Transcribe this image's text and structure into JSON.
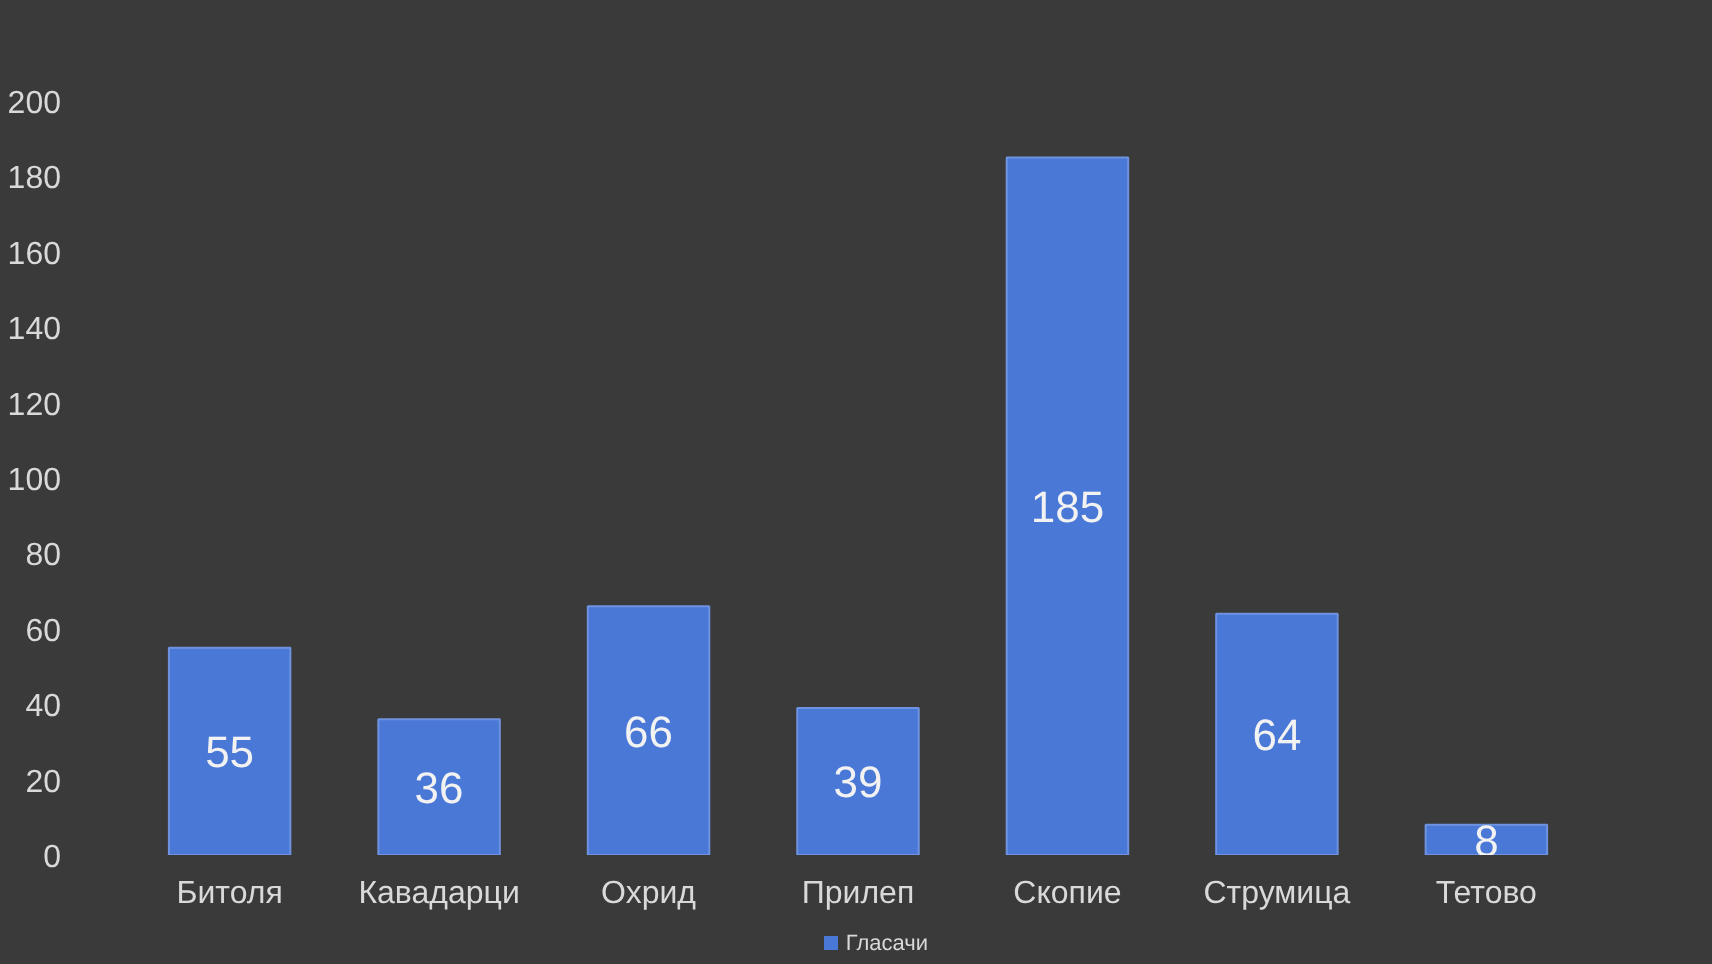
{
  "chart_data": {
    "type": "bar",
    "categories": [
      "Битоля",
      "Кавадарци",
      "Охрид",
      "Прилеп",
      "Скопие",
      "Струмица",
      "Тетово"
    ],
    "series": [
      {
        "name": "Гласачи",
        "color": "#4a78d6",
        "values": [
          55,
          36,
          66,
          39,
          185,
          64,
          8
        ]
      }
    ],
    "ylim": [
      0,
      200
    ],
    "yticks": [
      0,
      20,
      40,
      60,
      80,
      100,
      120,
      140,
      160,
      180,
      200
    ],
    "grid": false,
    "legend": "bottom",
    "data_labels": true
  }
}
